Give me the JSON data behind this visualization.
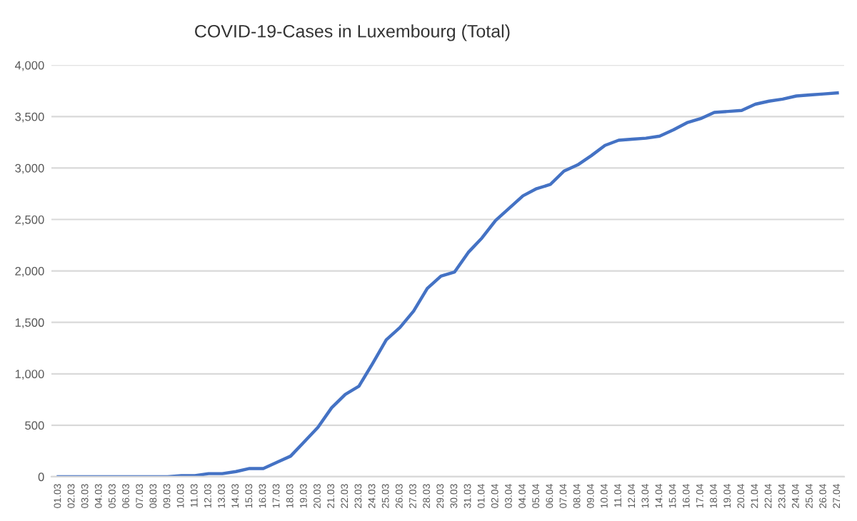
{
  "chart_data": {
    "type": "line",
    "title": "COVID-19-Cases in Luxembourg (Total)",
    "categories": [
      "01.03",
      "02.03",
      "03.03",
      "04.03",
      "05.03",
      "06.03",
      "07.03",
      "08.03",
      "09.03",
      "10.03",
      "11.03",
      "12.03",
      "13.03",
      "14.03",
      "15.03",
      "16.03",
      "17.03",
      "18.03",
      "19.03",
      "20.03",
      "21.03",
      "22.03",
      "23.03",
      "24.03",
      "25.03",
      "26.03",
      "27.03",
      "28.03",
      "29.03",
      "30.03",
      "31.03",
      "01.04",
      "02.04",
      "03.04",
      "04.04",
      "05.04",
      "06.04",
      "07.04",
      "08.04",
      "09.04",
      "10.04",
      "11.04",
      "12.04",
      "13.04",
      "14.04",
      "15.04",
      "16.04",
      "17.04",
      "18.04",
      "19.04",
      "20.04",
      "21.04",
      "22.04",
      "23.04",
      "24.04",
      "25.04",
      "26.04",
      "27.04"
    ],
    "series": [
      {
        "color": "#4472c4",
        "values": [
          0,
          0,
          0,
          0,
          0,
          0,
          0,
          0,
          0,
          10,
          10,
          30,
          30,
          50,
          80,
          80,
          140,
          200,
          340,
          480,
          670,
          800,
          880,
          1100,
          1330,
          1450,
          1610,
          1830,
          1950,
          1990,
          2180,
          2320,
          2490,
          2610,
          2730,
          2800,
          2840,
          2970,
          3030,
          3120,
          3220,
          3270,
          3280,
          3290,
          3310,
          3370,
          3440,
          3480,
          3540,
          3550,
          3560,
          3620,
          3650,
          3670,
          3700,
          3710,
          3720,
          3730
        ]
      }
    ],
    "ylim": [
      0,
      4000
    ],
    "yticks": [
      {
        "value": 0,
        "label": "0"
      },
      {
        "value": 500,
        "label": "500"
      },
      {
        "value": 1000,
        "label": "1,000"
      },
      {
        "value": 1500,
        "label": "1,500"
      },
      {
        "value": 2000,
        "label": "2,000"
      },
      {
        "value": 2500,
        "label": "2,500"
      },
      {
        "value": 3000,
        "label": "3,000"
      },
      {
        "value": 3500,
        "label": "3,500"
      },
      {
        "value": 4000,
        "label": "4,000"
      }
    ],
    "grid": "y",
    "marker": "none",
    "line_style": "solid"
  }
}
